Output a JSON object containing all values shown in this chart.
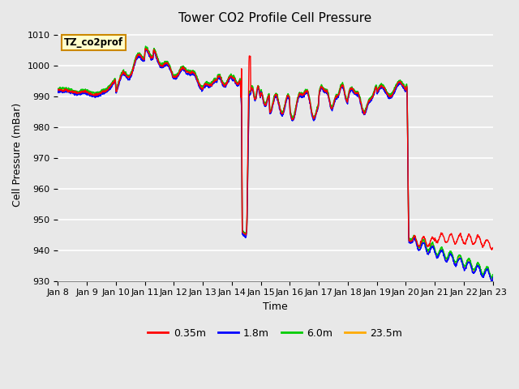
{
  "title": "Tower CO2 Profile Cell Pressure",
  "xlabel": "Time",
  "ylabel": "Cell Pressure (mBar)",
  "ylim": [
    930,
    1012
  ],
  "yticks": [
    930,
    940,
    950,
    960,
    970,
    980,
    990,
    1000,
    1010
  ],
  "bg_color": "#e8e8e8",
  "grid_color": "#ffffff",
  "series": [
    "0.35m",
    "1.8m",
    "6.0m",
    "23.5m"
  ],
  "colors": [
    "#ff0000",
    "#0000ff",
    "#00cc00",
    "#ffaa00"
  ],
  "lw": 1.0,
  "legend_box_color": "#ffffcc",
  "legend_box_edge": "#cc8800",
  "legend_text": "TZ_co2prof",
  "x_tick_labels": [
    "Jan 8",
    "Jan 9",
    "Jan 10",
    "Jan 11",
    "Jan 12",
    "Jan 13",
    "Jan 14",
    "Jan 15",
    "Jan 16",
    "Jan 17",
    "Jan 18",
    "Jan 19",
    "Jan 20",
    "Jan 21",
    "Jan 22",
    "Jan 23"
  ]
}
